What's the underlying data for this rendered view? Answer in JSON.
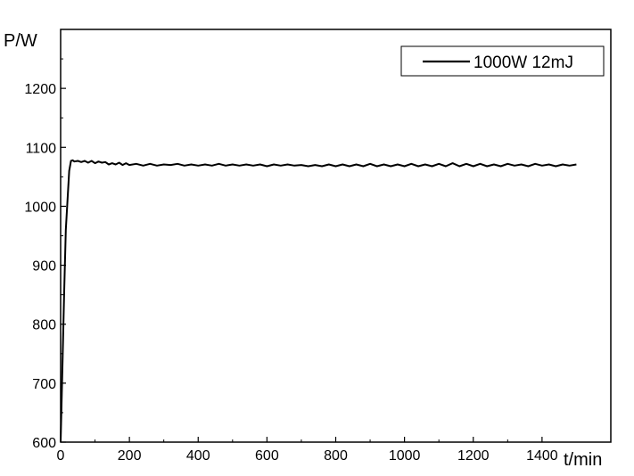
{
  "chart_data": {
    "type": "line",
    "title": "",
    "xlabel": "t/min",
    "ylabel": "P/W",
    "xlim": [
      0,
      1600
    ],
    "ylim": [
      600,
      1300
    ],
    "x_ticks": [
      0,
      200,
      400,
      600,
      800,
      1000,
      1200,
      1400
    ],
    "y_ticks": [
      600,
      700,
      800,
      900,
      1000,
      1100,
      1200
    ],
    "grid": false,
    "legend_position": "top-right",
    "series": [
      {
        "name": "1000W 12mJ",
        "color": "#000000",
        "x": [
          0,
          5,
          10,
          15,
          20,
          25,
          30,
          35,
          40,
          50,
          60,
          70,
          80,
          90,
          100,
          110,
          120,
          130,
          140,
          150,
          160,
          170,
          180,
          190,
          200,
          220,
          240,
          260,
          280,
          300,
          320,
          340,
          360,
          380,
          400,
          420,
          440,
          460,
          480,
          500,
          520,
          540,
          560,
          580,
          600,
          620,
          640,
          660,
          680,
          700,
          720,
          740,
          760,
          780,
          800,
          820,
          840,
          860,
          880,
          900,
          920,
          940,
          960,
          980,
          1000,
          1020,
          1040,
          1060,
          1080,
          1100,
          1120,
          1140,
          1160,
          1180,
          1200,
          1220,
          1240,
          1260,
          1280,
          1300,
          1320,
          1340,
          1360,
          1380,
          1400,
          1420,
          1440,
          1460,
          1480,
          1500
        ],
        "y": [
          600,
          720,
          850,
          960,
          1010,
          1060,
          1077,
          1078,
          1076,
          1077,
          1075,
          1077,
          1074,
          1077,
          1073,
          1076,
          1074,
          1075,
          1071,
          1073,
          1071,
          1074,
          1070,
          1073,
          1070,
          1072,
          1069,
          1072,
          1069,
          1071,
          1070,
          1072,
          1069,
          1071,
          1069,
          1071,
          1069,
          1072,
          1069,
          1071,
          1069,
          1071,
          1069,
          1071,
          1068,
          1071,
          1069,
          1071,
          1069,
          1070,
          1068,
          1070,
          1068,
          1071,
          1068,
          1071,
          1068,
          1071,
          1068,
          1072,
          1068,
          1071,
          1068,
          1071,
          1068,
          1072,
          1068,
          1071,
          1068,
          1072,
          1068,
          1073,
          1068,
          1072,
          1068,
          1072,
          1068,
          1071,
          1068,
          1072,
          1069,
          1071,
          1068,
          1072,
          1069,
          1071,
          1068,
          1071,
          1069,
          1071
        ]
      }
    ]
  }
}
